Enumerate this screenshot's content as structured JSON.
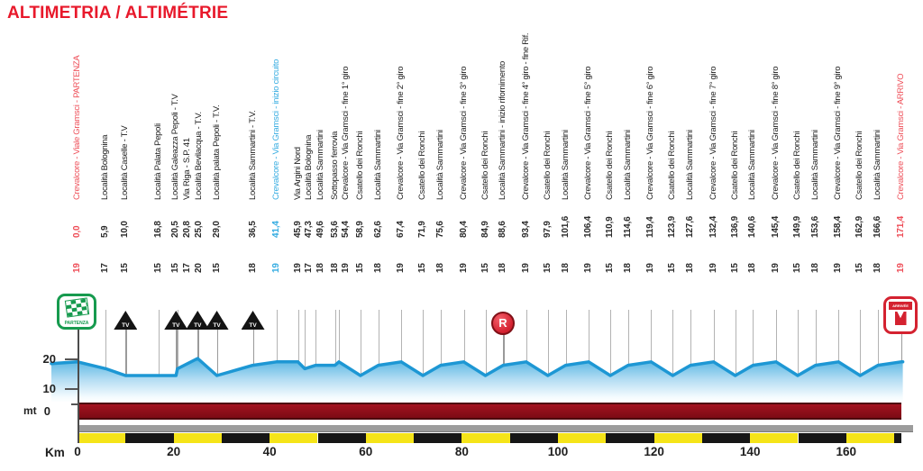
{
  "title": "ALTIMETRIA / ALTIMÉTRIE",
  "colors": {
    "title_red": "#e8192b",
    "label_red": "#ee4d57",
    "label_blue": "#33abe1",
    "profile_line": "#1d97d4",
    "band_maroon": "#8e1019",
    "band_gray": "#9c9c9c",
    "stripe_yellow": "#f5e419",
    "stripe_black": "#161616",
    "start_green": "#169a4e",
    "finish_red": "#d42230"
  },
  "axis": {
    "y_unit": "mt",
    "y_ticks": [
      "20",
      "10",
      "0"
    ],
    "x_unit": "Km",
    "x_ticks": [
      "0",
      "20",
      "40",
      "60",
      "80",
      "100",
      "120",
      "140",
      "160"
    ]
  },
  "icons": {
    "start_label": "PARTENZA",
    "finish_label": "ARRIVÉE",
    "feed_label": "R",
    "tv_label": "TV"
  },
  "chart_data": {
    "type": "area",
    "title": "ALTIMETRIA / ALTIMÉTRIE",
    "xlabel": "Km",
    "ylabel": "mt",
    "x_range": [
      0,
      171.4
    ],
    "y_ticks_m": [
      0,
      10,
      20
    ],
    "stripe_block_km": 10,
    "locations": [
      {
        "name": "Crevalcore - Viale Gramsci - PARTENZA",
        "km": "0,0",
        "elev": "19",
        "color": "red",
        "marker": "start"
      },
      {
        "name": "Località Bolognina",
        "km": "5,9",
        "elev": "17",
        "color": null,
        "marker": null
      },
      {
        "name": "Località Caselle - T.V",
        "km": "10,0",
        "elev": "15",
        "color": null,
        "marker": "tv"
      },
      {
        "name": "Località Palata Pepoli",
        "km": "16,8",
        "elev": "15",
        "color": null,
        "marker": null
      },
      {
        "name": "Località Galeazza Pepoli - T.V",
        "km": "20,5",
        "elev": "15",
        "color": null,
        "marker": "tv"
      },
      {
        "name": "Via Riga - S.P. 41",
        "km": "20,8",
        "elev": "17",
        "color": null,
        "marker": null
      },
      {
        "name": "Località Bevilacqua - T.V.",
        "km": "25,0",
        "elev": "20",
        "color": null,
        "marker": "tv"
      },
      {
        "name": "Località palata Pepoli - T.V.",
        "km": "29,0",
        "elev": "15",
        "color": null,
        "marker": "tv"
      },
      {
        "name": "Località Sammartini - T.V.",
        "km": "36,5",
        "elev": "18",
        "color": null,
        "marker": "tv"
      },
      {
        "name": "Crevalcore - Via Gramsci - inizio circuito",
        "km": "41,4",
        "elev": "19",
        "color": "blue",
        "marker": null
      },
      {
        "name": "Via Argini Nord",
        "km": "45,9",
        "elev": "19",
        "color": null,
        "marker": null
      },
      {
        "name": "Località Bolognina",
        "km": "47,3",
        "elev": "17",
        "color": null,
        "marker": null
      },
      {
        "name": "Località Sammartini",
        "km": "49,6",
        "elev": "18",
        "color": null,
        "marker": null
      },
      {
        "name": "Sottopasso ferrovia",
        "km": "53,6",
        "elev": "18",
        "color": null,
        "marker": null
      },
      {
        "name": "Crevalcore - Via Gramsci - fine 1° giro",
        "km": "54,4",
        "elev": "19",
        "color": null,
        "marker": null
      },
      {
        "name": "Csatello dei Ronchi",
        "km": "58,9",
        "elev": "15",
        "color": null,
        "marker": null
      },
      {
        "name": "Località Sammartini",
        "km": "62,6",
        "elev": "18",
        "color": null,
        "marker": null
      },
      {
        "name": "Crevalcore - Via Gramsci - fine 2° giro",
        "km": "67,4",
        "elev": "19",
        "color": null,
        "marker": null
      },
      {
        "name": "Csatello dei Ronchi",
        "km": "71,9",
        "elev": "15",
        "color": null,
        "marker": null
      },
      {
        "name": "Località Sammartini",
        "km": "75,6",
        "elev": "18",
        "color": null,
        "marker": null
      },
      {
        "name": "Crevalcore - Via Gramsci - fine 3° giro",
        "km": "80,4",
        "elev": "19",
        "color": null,
        "marker": null
      },
      {
        "name": "Csatello dei Ronchi",
        "km": "84,9",
        "elev": "15",
        "color": null,
        "marker": null
      },
      {
        "name": "Località Sammartini - inizio rifornimento",
        "km": "88,6",
        "elev": "18",
        "color": null,
        "marker": "feed"
      },
      {
        "name": "Crevalcore - Via Gramsci - fine 4° giro - fine Rif.",
        "km": "93,4",
        "elev": "19",
        "color": null,
        "marker": null
      },
      {
        "name": "Csatello dei Ronchi",
        "km": "97,9",
        "elev": "15",
        "color": null,
        "marker": null
      },
      {
        "name": "Località Sammartini",
        "km": "101,6",
        "elev": "18",
        "color": null,
        "marker": null
      },
      {
        "name": "Crevalcore - Via Gramsci - fine 5° giro",
        "km": "106,4",
        "elev": "19",
        "color": null,
        "marker": null
      },
      {
        "name": "Csatello dei Ronchi",
        "km": "110,9",
        "elev": "15",
        "color": null,
        "marker": null
      },
      {
        "name": "Località Sammartini",
        "km": "114,6",
        "elev": "18",
        "color": null,
        "marker": null
      },
      {
        "name": "Crevalcore - Via Gramsci - fine 6° giro",
        "km": "119,4",
        "elev": "19",
        "color": null,
        "marker": null
      },
      {
        "name": "Csatello dei Ronchi",
        "km": "123,9",
        "elev": "15",
        "color": null,
        "marker": null
      },
      {
        "name": "Località Sammartini",
        "km": "127,6",
        "elev": "18",
        "color": null,
        "marker": null
      },
      {
        "name": "Crevalcore - Via Gramsci - fine 7° giro",
        "km": "132,4",
        "elev": "19",
        "color": null,
        "marker": null
      },
      {
        "name": "Csatello dei Ronchi",
        "km": "136,9",
        "elev": "15",
        "color": null,
        "marker": null
      },
      {
        "name": "Località Sammartini",
        "km": "140,6",
        "elev": "18",
        "color": null,
        "marker": null
      },
      {
        "name": "Crevalcore - Via Gramsci - fine 8° giro",
        "km": "145,4",
        "elev": "19",
        "color": null,
        "marker": null
      },
      {
        "name": "Csatello dei Ronchi",
        "km": "149,9",
        "elev": "15",
        "color": null,
        "marker": null
      },
      {
        "name": "Località Sammartini",
        "km": "153,6",
        "elev": "18",
        "color": null,
        "marker": null
      },
      {
        "name": "Crevalcore - Via Gramsci - fine 9° giro",
        "km": "158,4",
        "elev": "19",
        "color": null,
        "marker": null
      },
      {
        "name": "Csatello dei Ronchi",
        "km": "162,9",
        "elev": "15",
        "color": null,
        "marker": null
      },
      {
        "name": "Località Sammartini",
        "km": "166,6",
        "elev": "18",
        "color": null,
        "marker": null
      },
      {
        "name": "Crevalcore - Via Gramsci - ARRIVO",
        "km": "171,4",
        "elev": "19",
        "color": "red",
        "marker": "finish"
      }
    ]
  }
}
